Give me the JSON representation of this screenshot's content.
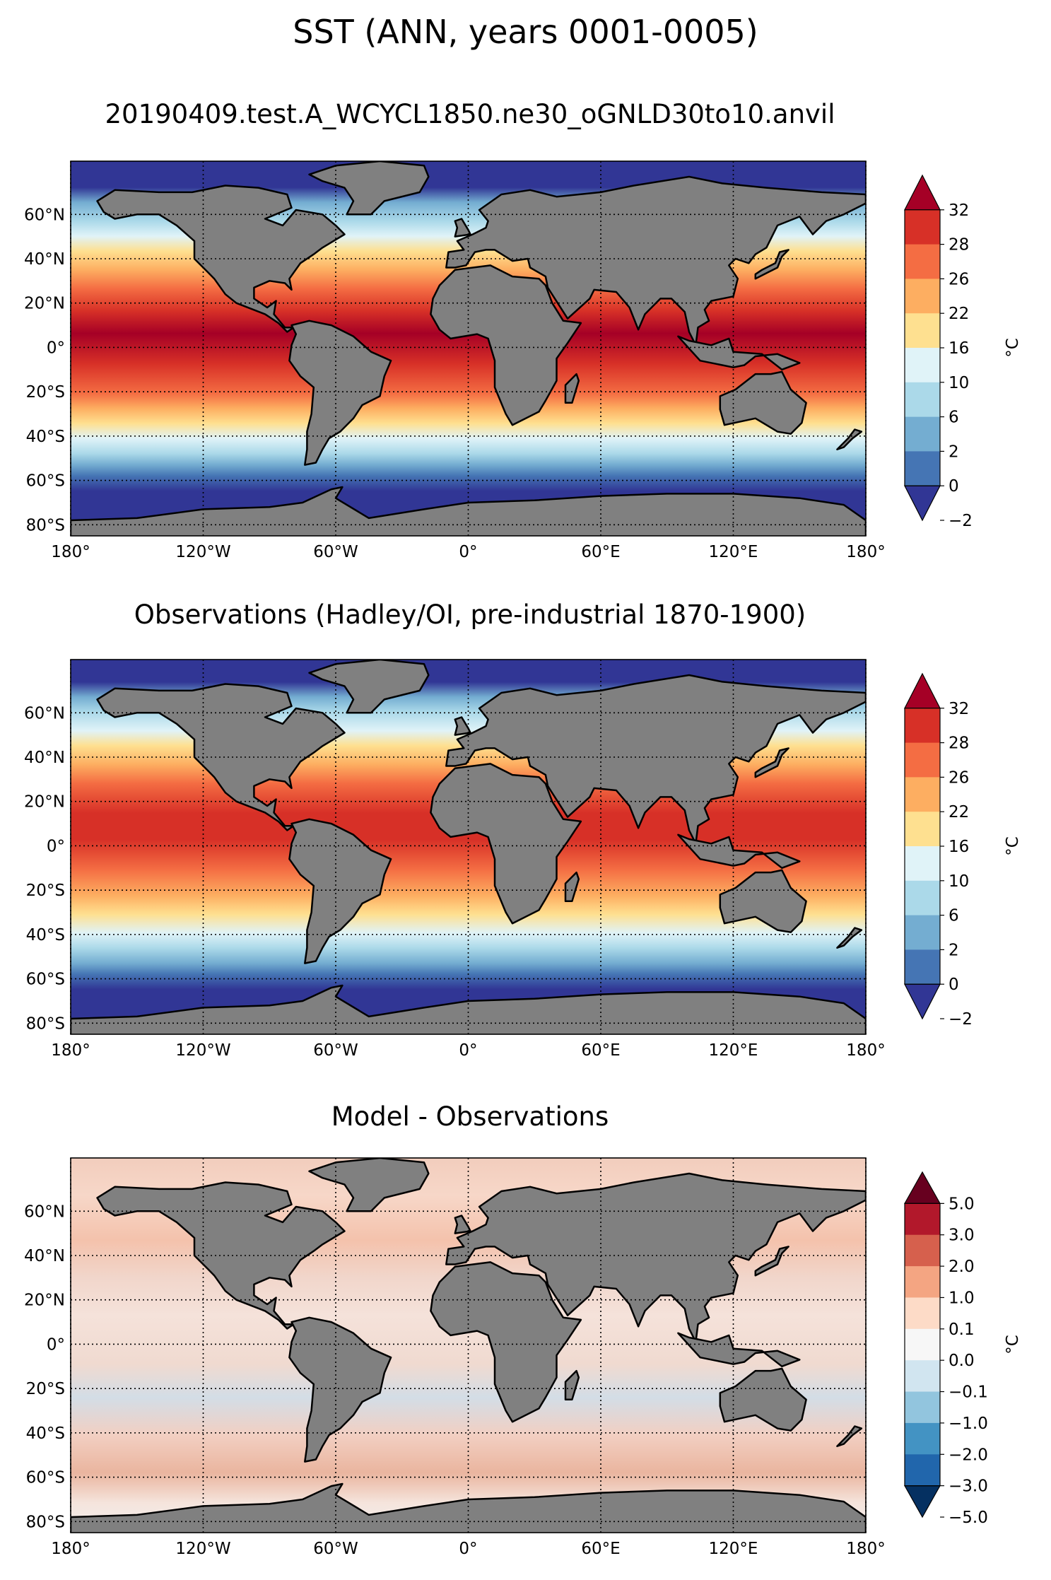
{
  "figure": {
    "title": "SST (ANN, years 0001-0005)"
  },
  "axes": {
    "lon_ticks": [
      "180°",
      "120°W",
      "60°W",
      "0°",
      "60°E",
      "120°E",
      "180°"
    ],
    "lat_ticks": [
      "60°N",
      "40°N",
      "20°N",
      "0°",
      "20°S",
      "40°S",
      "60°S",
      "80°S"
    ]
  },
  "land_color": "#808080",
  "panels": [
    {
      "title": "20190409.test.A_WCYCL1850.ne30_oGNLD30to10.anvil",
      "colorbar": {
        "labels": [
          "32",
          "28",
          "26",
          "22",
          "16",
          "10",
          "6",
          "2",
          "0",
          "−2"
        ],
        "colors": [
          "#a50026",
          "#d73027",
          "#f46d43",
          "#fdae61",
          "#fee090",
          "#e0f3f8",
          "#abd9e9",
          "#74add1",
          "#4575b4",
          "#313695"
        ],
        "unit": "°C"
      }
    },
    {
      "title": "Observations (Hadley/OI, pre-industrial 1870-1900)",
      "colorbar": {
        "labels": [
          "32",
          "28",
          "26",
          "22",
          "16",
          "10",
          "6",
          "2",
          "0",
          "−2"
        ],
        "colors": [
          "#a50026",
          "#d73027",
          "#f46d43",
          "#fdae61",
          "#fee090",
          "#e0f3f8",
          "#abd9e9",
          "#74add1",
          "#4575b4",
          "#313695"
        ],
        "unit": "°C"
      }
    },
    {
      "title": "Model - Observations",
      "colorbar": {
        "labels": [
          "5.0",
          "3.0",
          "2.0",
          "1.0",
          "0.1",
          "0.0",
          "−0.1",
          "−1.0",
          "−2.0",
          "−3.0",
          "−5.0"
        ],
        "colors": [
          "#67001f",
          "#b2182b",
          "#d6604d",
          "#f4a582",
          "#fddbc7",
          "#f7f7f7",
          "#d1e5f0",
          "#92c5de",
          "#4393c3",
          "#2166ac",
          "#053061"
        ],
        "unit": "°C"
      }
    }
  ]
}
